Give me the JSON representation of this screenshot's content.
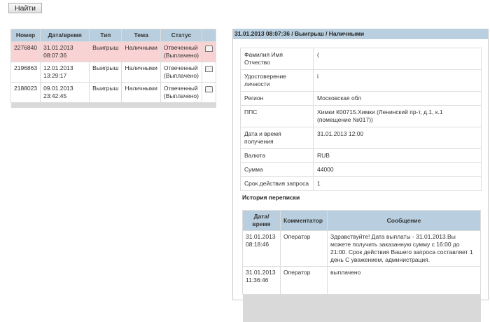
{
  "search": {
    "button": "Найти"
  },
  "list": {
    "headers": [
      "Номер",
      "Дата/время",
      "Тип",
      "Тема",
      "Статус"
    ],
    "rows": [
      {
        "number": "2276840",
        "datetime": "31.01.2013 08:07:36",
        "type": "Выигрыш",
        "topic": "Наличными",
        "status": "Отвеченный (Выплачено)",
        "selected": true
      },
      {
        "number": "2196863",
        "datetime": "12.01.2013 13:29:17",
        "type": "Выигрыш",
        "topic": "Наличными",
        "status": "Отвеченный (Выплачено)",
        "selected": false
      },
      {
        "number": "2188023",
        "datetime": "09.01.2013 23:42:45",
        "type": "Выигрыш",
        "topic": "Наличными",
        "status": "Отвеченный (Выплачено)",
        "selected": false
      }
    ],
    "row_icon": "envelope-icon",
    "selected_color": "#f9d2d3",
    "header_color": "#b9cfdf"
  },
  "detail": {
    "title": "31.01.2013 08:07:36 / Выигрыш / Наличными",
    "fields": [
      {
        "label": "Фамилия Имя Отчество",
        "value": "("
      },
      {
        "label": "Удостоверение личности",
        "value": "i"
      },
      {
        "label": "Регион",
        "value": "Московская обл"
      },
      {
        "label": "ППС",
        "value": "Химки К00715.Химки (Ленинский пр-т, д.1, к.1 (помещение №017))"
      },
      {
        "label": "Дата и время получения",
        "value": "31.01.2013 12:00"
      },
      {
        "label": "Валюта",
        "value": "RUB"
      },
      {
        "label": "Сумма",
        "value": "44000"
      },
      {
        "label": "Срок действия запроса",
        "value": "1"
      }
    ],
    "history_title": "История переписки",
    "history_headers": [
      "Дата/время",
      "Комментатор",
      "Сообщение"
    ],
    "history": [
      {
        "datetime": "31.01.2013 08:18:46",
        "author": "Оператор",
        "message": "Здравствуйте! Дата выплаты - 31.01.2013.Вы можете получить заказанную сумму с 16:00 до 21:00. Срок действия Вашего запроса составляет 1 день С уважением, администрация."
      },
      {
        "datetime": "31.01.2013 11:36:46",
        "author": "Оператор",
        "message": "выплачено"
      }
    ]
  }
}
